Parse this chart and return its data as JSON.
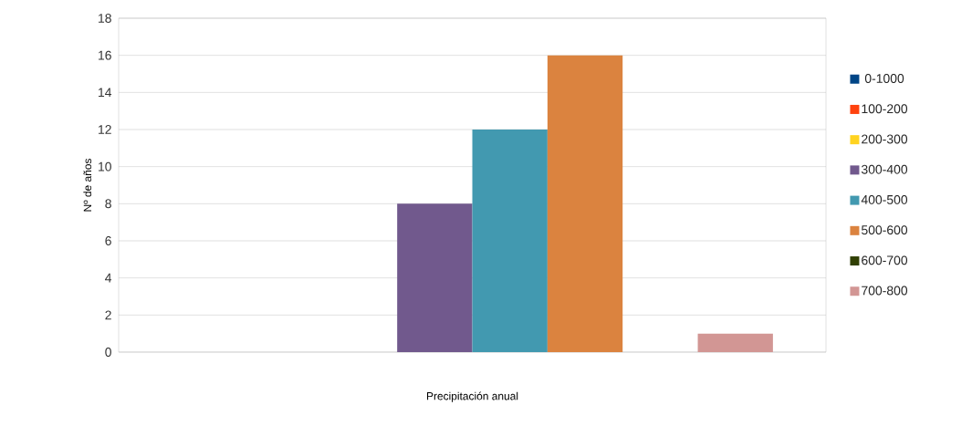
{
  "chart_data": {
    "type": "bar",
    "xlabel": "Precipitación anual",
    "ylabel": "Nº de años",
    "categories": [
      null
    ],
    "series": [
      {
        "name": "0-1000",
        "color": "#004586",
        "values": [
          0
        ]
      },
      {
        "name": "100-200",
        "color": "#ff420e",
        "values": [
          0
        ]
      },
      {
        "name": "200-300",
        "color": "#ffd320",
        "values": [
          0
        ]
      },
      {
        "name": "300-400",
        "color": "#71598d",
        "values": [
          8
        ]
      },
      {
        "name": "400-500",
        "color": "#4299b0",
        "values": [
          12
        ]
      },
      {
        "name": "500-600",
        "color": "#db833f",
        "values": [
          16
        ]
      },
      {
        "name": "600-700",
        "color": "#314004",
        "values": [
          0
        ]
      },
      {
        "name": "700-800",
        "color": "#d29694",
        "values": [
          1
        ]
      }
    ],
    "ylim": [
      0,
      18
    ],
    "yticks": [
      0,
      2,
      4,
      6,
      8,
      10,
      12,
      14,
      16,
      18
    ],
    "grid": "y",
    "legend": "right"
  }
}
